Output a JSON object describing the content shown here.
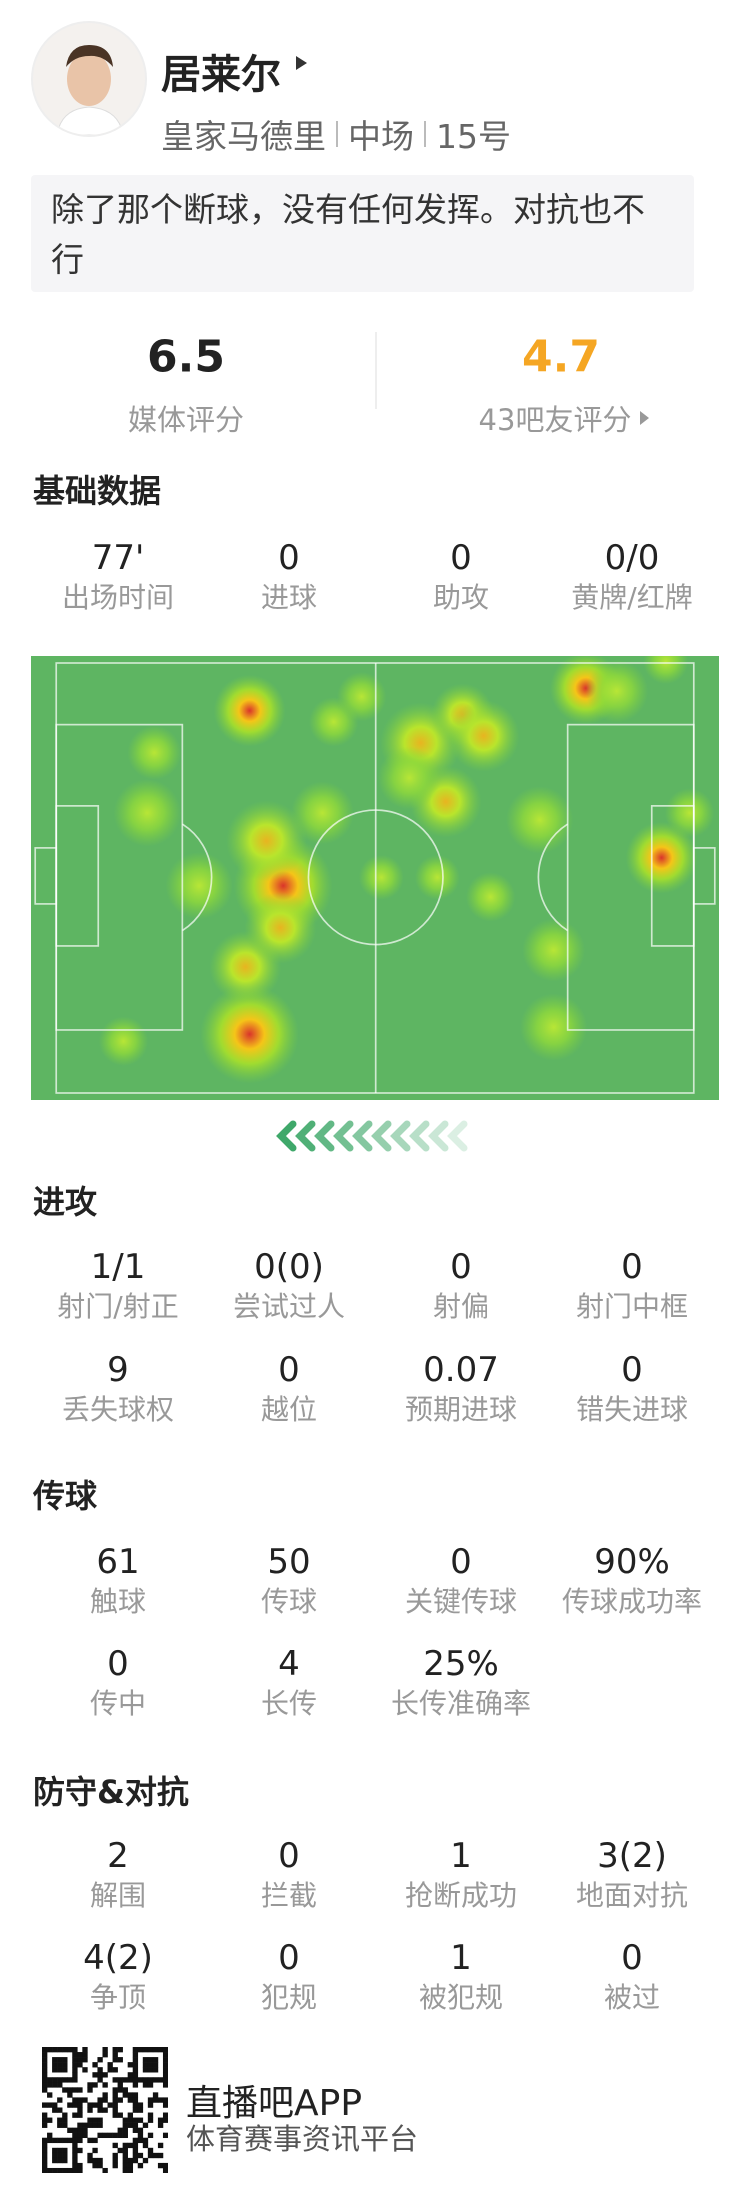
{
  "player": {
    "name": "居莱尔",
    "team": "皇家马德里",
    "position": "中场",
    "number": "15号"
  },
  "comment": "除了那个断球，没有任何发挥。对抗也不行",
  "ratings": {
    "media": {
      "value": 6.5,
      "label": "媒体评分"
    },
    "fans": {
      "value": 4.7,
      "label": "43吧友评分"
    }
  },
  "sections": [
    {
      "title": "基础数据",
      "rows": [
        [
          {
            "value": "77'",
            "label": "出场时间"
          },
          {
            "value": 0,
            "label": "进球"
          },
          {
            "value": 0,
            "label": "助攻"
          },
          {
            "value": "0/0",
            "label": "黄牌/红牌"
          }
        ]
      ]
    },
    {
      "title": "进攻",
      "rows": [
        [
          {
            "value": "1/1",
            "label": "射门/射正"
          },
          {
            "value": "0(0)",
            "label": "尝试过人"
          },
          {
            "value": 0,
            "label": "射偏"
          },
          {
            "value": 0,
            "label": "射门中框"
          }
        ],
        [
          {
            "value": 9,
            "label": "丢失球权"
          },
          {
            "value": 0,
            "label": "越位"
          },
          {
            "value": 0.07,
            "label": "预期进球"
          },
          {
            "value": 0,
            "label": "错失进球"
          }
        ]
      ]
    },
    {
      "title": "传球",
      "rows": [
        [
          {
            "value": 61,
            "label": "触球"
          },
          {
            "value": 50,
            "label": "传球"
          },
          {
            "value": 0,
            "label": "关键传球"
          },
          {
            "value": "90%",
            "label": "传球成功率"
          }
        ],
        [
          {
            "value": 0,
            "label": "传中"
          },
          {
            "value": 4,
            "label": "长传"
          },
          {
            "value": "25%",
            "label": "长传准确率"
          }
        ]
      ]
    },
    {
      "title": "防守&对抗",
      "rows": [
        [
          {
            "value": 2,
            "label": "解围"
          },
          {
            "value": 0,
            "label": "拦截"
          },
          {
            "value": 1,
            "label": "抢断成功"
          },
          {
            "value": "3(2)",
            "label": "地面对抗"
          }
        ],
        [
          {
            "value": "4(2)",
            "label": "争顶"
          },
          {
            "value": 0,
            "label": "犯规"
          },
          {
            "value": 1,
            "label": "被犯规"
          },
          {
            "value": 0,
            "label": "被过"
          }
        ]
      ]
    }
  ],
  "footer": {
    "app": "直播吧APP",
    "tagline": "体育赛事资讯平台"
  }
}
